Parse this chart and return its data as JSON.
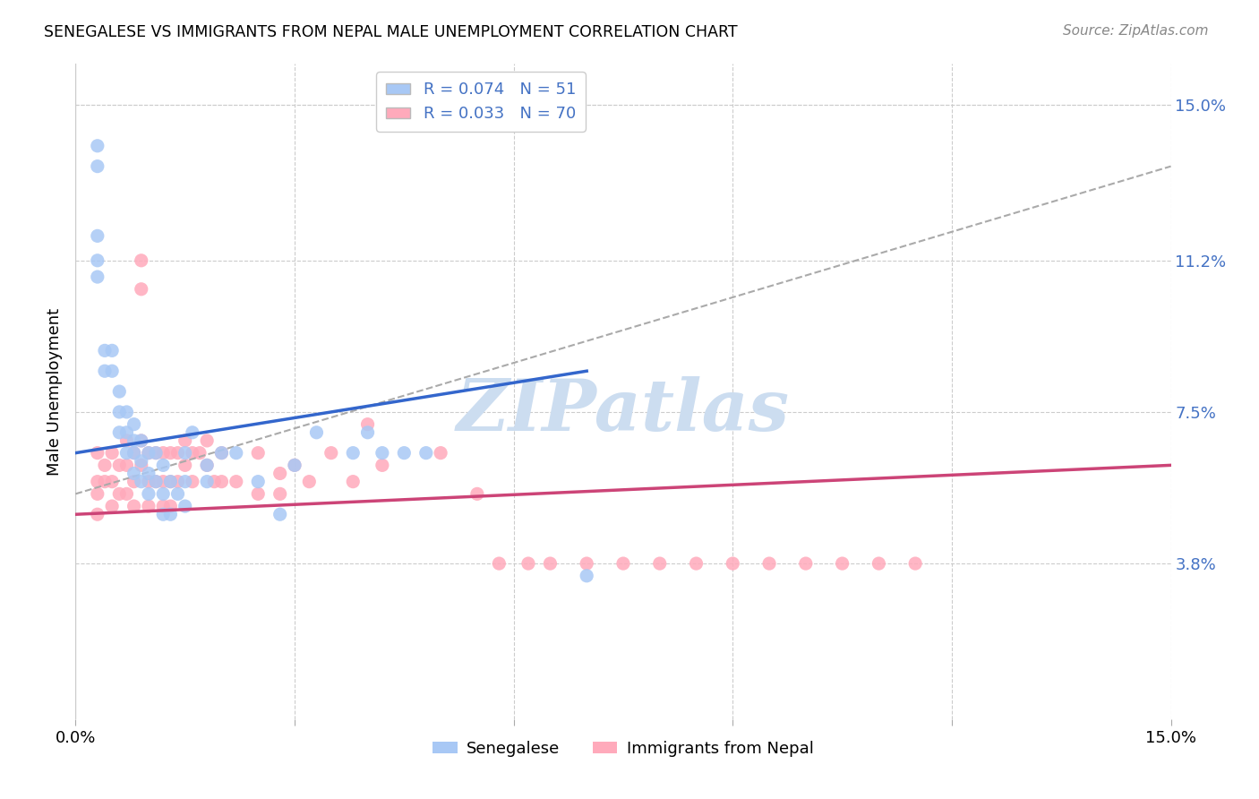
{
  "title": "SENEGALESE VS IMMIGRANTS FROM NEPAL MALE UNEMPLOYMENT CORRELATION CHART",
  "source": "Source: ZipAtlas.com",
  "ylabel": "Male Unemployment",
  "xlim": [
    0.0,
    0.15
  ],
  "ylim": [
    0.0,
    0.16
  ],
  "ytick_right_labels": [
    "15.0%",
    "11.2%",
    "7.5%",
    "3.8%"
  ],
  "ytick_right_values": [
    0.15,
    0.112,
    0.075,
    0.038
  ],
  "senegalese_R": 0.074,
  "senegalese_N": 51,
  "nepal_R": 0.033,
  "nepal_N": 70,
  "senegalese_color": "#a8c8f5",
  "senegalese_line_color": "#3366cc",
  "nepal_color": "#ffaabb",
  "nepal_line_color": "#cc4477",
  "dashed_line_color": "#aaaaaa",
  "watermark_color": "#ccddf0",
  "background_color": "#ffffff",
  "senegalese_x": [
    0.003,
    0.003,
    0.003,
    0.003,
    0.003,
    0.004,
    0.004,
    0.005,
    0.005,
    0.006,
    0.006,
    0.006,
    0.007,
    0.007,
    0.007,
    0.008,
    0.008,
    0.008,
    0.008,
    0.009,
    0.009,
    0.009,
    0.01,
    0.01,
    0.01,
    0.011,
    0.011,
    0.012,
    0.012,
    0.012,
    0.013,
    0.013,
    0.014,
    0.015,
    0.015,
    0.015,
    0.016,
    0.018,
    0.018,
    0.02,
    0.022,
    0.025,
    0.028,
    0.03,
    0.033,
    0.038,
    0.04,
    0.042,
    0.045,
    0.048,
    0.07
  ],
  "senegalese_y": [
    0.14,
    0.135,
    0.118,
    0.112,
    0.108,
    0.09,
    0.085,
    0.09,
    0.085,
    0.08,
    0.075,
    0.07,
    0.075,
    0.07,
    0.065,
    0.072,
    0.068,
    0.065,
    0.06,
    0.068,
    0.063,
    0.058,
    0.065,
    0.06,
    0.055,
    0.065,
    0.058,
    0.062,
    0.055,
    0.05,
    0.058,
    0.05,
    0.055,
    0.065,
    0.058,
    0.052,
    0.07,
    0.062,
    0.058,
    0.065,
    0.065,
    0.058,
    0.05,
    0.062,
    0.07,
    0.065,
    0.07,
    0.065,
    0.065,
    0.065,
    0.035
  ],
  "nepal_x": [
    0.003,
    0.003,
    0.003,
    0.003,
    0.004,
    0.004,
    0.005,
    0.005,
    0.005,
    0.006,
    0.006,
    0.007,
    0.007,
    0.007,
    0.008,
    0.008,
    0.008,
    0.009,
    0.009,
    0.009,
    0.009,
    0.01,
    0.01,
    0.01,
    0.011,
    0.011,
    0.012,
    0.012,
    0.012,
    0.013,
    0.013,
    0.013,
    0.014,
    0.014,
    0.015,
    0.015,
    0.016,
    0.016,
    0.017,
    0.018,
    0.018,
    0.019,
    0.02,
    0.02,
    0.022,
    0.025,
    0.025,
    0.028,
    0.028,
    0.03,
    0.032,
    0.035,
    0.038,
    0.04,
    0.042,
    0.05,
    0.055,
    0.058,
    0.062,
    0.065,
    0.07,
    0.075,
    0.08,
    0.085,
    0.09,
    0.095,
    0.1,
    0.105,
    0.11,
    0.115
  ],
  "nepal_y": [
    0.065,
    0.058,
    0.055,
    0.05,
    0.062,
    0.058,
    0.065,
    0.058,
    0.052,
    0.062,
    0.055,
    0.068,
    0.062,
    0.055,
    0.065,
    0.058,
    0.052,
    0.112,
    0.105,
    0.068,
    0.062,
    0.065,
    0.058,
    0.052,
    0.065,
    0.058,
    0.065,
    0.058,
    0.052,
    0.065,
    0.058,
    0.052,
    0.065,
    0.058,
    0.068,
    0.062,
    0.065,
    0.058,
    0.065,
    0.068,
    0.062,
    0.058,
    0.065,
    0.058,
    0.058,
    0.065,
    0.055,
    0.06,
    0.055,
    0.062,
    0.058,
    0.065,
    0.058,
    0.072,
    0.062,
    0.065,
    0.055,
    0.038,
    0.038,
    0.038,
    0.038,
    0.038,
    0.038,
    0.038,
    0.038,
    0.038,
    0.038,
    0.038,
    0.038,
    0.038
  ],
  "sen_line_x0": 0.0,
  "sen_line_y0": 0.065,
  "sen_line_x1": 0.07,
  "sen_line_y1": 0.085,
  "nep_line_x0": 0.0,
  "nep_line_y0": 0.05,
  "nep_line_x1": 0.15,
  "nep_line_y1": 0.062,
  "dash_line_x0": 0.0,
  "dash_line_y0": 0.055,
  "dash_line_x1": 0.15,
  "dash_line_y1": 0.135
}
